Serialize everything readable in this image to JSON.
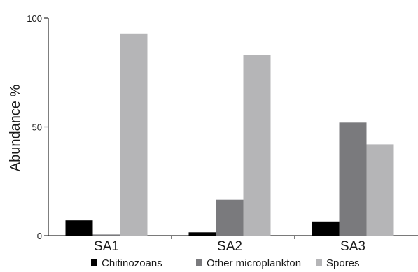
{
  "chart_data": {
    "type": "bar",
    "title": "",
    "xlabel": "",
    "ylabel": "Abundance %",
    "ylim": [
      0,
      100
    ],
    "yticks": [
      0,
      50,
      100
    ],
    "grid": false,
    "legend_position": "bottom",
    "categories": [
      "SA1",
      "SA2",
      "SA3"
    ],
    "series": [
      {
        "name": "Chitinozoans",
        "color": "#000000",
        "values": [
          7,
          1.5,
          6.5
        ]
      },
      {
        "name": "Other microplankton",
        "color": "#7a7a7d",
        "values": [
          0.5,
          16.5,
          52
        ]
      },
      {
        "name": "Spores",
        "color": "#b5b5b7",
        "values": [
          93,
          83,
          42
        ]
      }
    ]
  }
}
